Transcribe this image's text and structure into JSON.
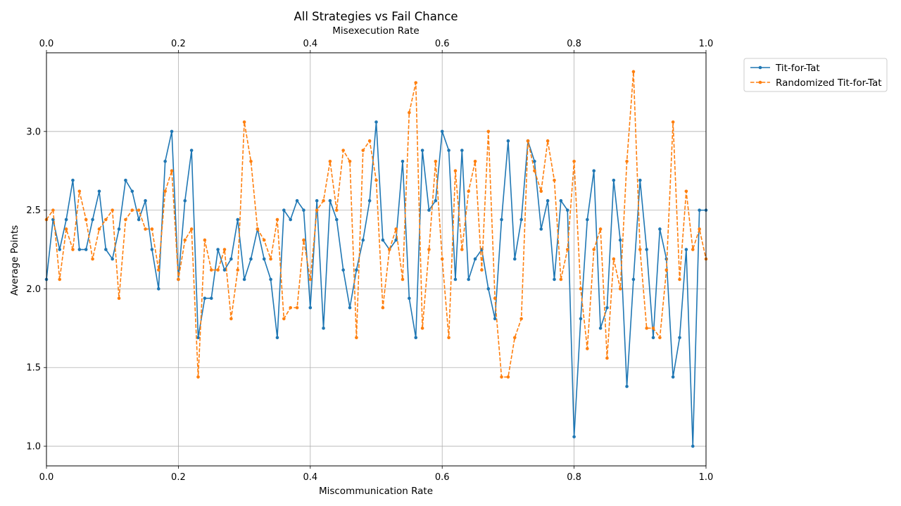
{
  "chart_data": {
    "type": "line",
    "title": "All Strategies vs Fail Chance",
    "xlabel": "Miscommunication Rate",
    "x2label": "Misexecution Rate",
    "ylabel": "Average Points",
    "xlim": [
      0,
      1
    ],
    "x2lim": [
      0,
      1
    ],
    "ylim": [
      0.875,
      3.5
    ],
    "xticks": [
      0.0,
      0.2,
      0.4,
      0.6,
      0.8,
      1.0
    ],
    "xtick_labels": [
      "0.0",
      "0.2",
      "0.4",
      "0.6",
      "0.8",
      "1.0"
    ],
    "yticks": [
      1.0,
      1.5,
      2.0,
      2.5,
      3.0
    ],
    "ytick_labels": [
      "1.0",
      "1.5",
      "2.0",
      "2.5",
      "3.0"
    ],
    "grid": true,
    "legend_position": "outside-top-right",
    "x": [
      0.0,
      0.01,
      0.02,
      0.03,
      0.04,
      0.05,
      0.06,
      0.07,
      0.08,
      0.09,
      0.1,
      0.11,
      0.12,
      0.13,
      0.14,
      0.15,
      0.16,
      0.17,
      0.18,
      0.19,
      0.2,
      0.21,
      0.22,
      0.23,
      0.24,
      0.25,
      0.26,
      0.27,
      0.28,
      0.29,
      0.3,
      0.31,
      0.32,
      0.33,
      0.34,
      0.35,
      0.36,
      0.37,
      0.38,
      0.39,
      0.4,
      0.41,
      0.42,
      0.43,
      0.44,
      0.45,
      0.46,
      0.47,
      0.48,
      0.49,
      0.5,
      0.51,
      0.52,
      0.53,
      0.54,
      0.55,
      0.56,
      0.57,
      0.58,
      0.59,
      0.6,
      0.61,
      0.62,
      0.63,
      0.64,
      0.65,
      0.66,
      0.67,
      0.68,
      0.69,
      0.7,
      0.71,
      0.72,
      0.73,
      0.74,
      0.75,
      0.76,
      0.77,
      0.78,
      0.79,
      0.8,
      0.81,
      0.82,
      0.83,
      0.84,
      0.85,
      0.86,
      0.87,
      0.88,
      0.89,
      0.9,
      0.91,
      0.92,
      0.93,
      0.94,
      0.95,
      0.96,
      0.97,
      0.98,
      0.99,
      1.0
    ],
    "series": [
      {
        "name": "Tit-for-Tat",
        "color": "#1f77b4",
        "dash": "solid",
        "values": [
          2.06,
          2.44,
          2.25,
          2.44,
          2.69,
          2.25,
          2.25,
          2.44,
          2.62,
          2.25,
          2.19,
          2.38,
          2.69,
          2.62,
          2.44,
          2.56,
          2.25,
          2.0,
          2.81,
          3.0,
          2.06,
          2.56,
          2.88,
          1.69,
          1.94,
          1.94,
          2.25,
          2.12,
          2.19,
          2.44,
          2.06,
          2.19,
          2.38,
          2.19,
          2.06,
          1.69,
          2.5,
          2.44,
          2.56,
          2.5,
          1.88,
          2.56,
          1.75,
          2.56,
          2.44,
          2.12,
          1.88,
          2.12,
          2.31,
          2.56,
          3.06,
          2.31,
          2.25,
          2.31,
          2.81,
          1.94,
          1.69,
          2.88,
          2.5,
          2.56,
          3.0,
          2.88,
          2.06,
          2.88,
          2.06,
          2.19,
          2.25,
          2.0,
          1.81,
          2.44,
          2.94,
          2.19,
          2.44,
          2.94,
          2.81,
          2.38,
          2.56,
          2.06,
          2.56,
          2.5,
          1.06,
          1.81,
          2.44,
          2.75,
          1.75,
          1.88,
          2.69,
          2.31,
          1.38,
          2.06,
          2.69,
          2.25,
          1.69,
          2.38,
          2.19,
          1.44,
          1.69,
          2.25,
          1.0,
          2.5,
          2.5
        ]
      },
      {
        "name": "Randomized Tit-for-Tat",
        "color": "#ff7f0e",
        "dash": "dashed",
        "values": [
          2.44,
          2.5,
          2.06,
          2.38,
          2.25,
          2.62,
          2.44,
          2.19,
          2.38,
          2.44,
          2.5,
          1.94,
          2.44,
          2.5,
          2.5,
          2.38,
          2.38,
          2.12,
          2.62,
          2.75,
          2.06,
          2.31,
          2.38,
          1.44,
          2.31,
          2.12,
          2.12,
          2.25,
          1.81,
          2.12,
          3.06,
          2.81,
          2.38,
          2.31,
          2.19,
          2.44,
          1.81,
          1.88,
          1.88,
          2.31,
          2.06,
          2.5,
          2.56,
          2.81,
          2.5,
          2.88,
          2.81,
          1.69,
          2.88,
          2.94,
          2.69,
          1.88,
          2.25,
          2.38,
          2.06,
          3.12,
          3.31,
          1.75,
          2.25,
          2.81,
          2.19,
          1.69,
          2.75,
          2.25,
          2.62,
          2.81,
          2.12,
          3.0,
          1.94,
          1.44,
          1.44,
          1.69,
          1.81,
          2.94,
          2.75,
          2.62,
          2.94,
          2.69,
          2.06,
          2.25,
          2.81,
          2.0,
          1.62,
          2.25,
          2.38,
          1.56,
          2.19,
          2.0,
          2.81,
          3.38,
          2.25,
          1.75,
          1.75,
          1.69,
          2.12,
          3.06,
          2.06,
          2.62,
          2.25,
          2.38,
          2.19
        ]
      }
    ]
  }
}
